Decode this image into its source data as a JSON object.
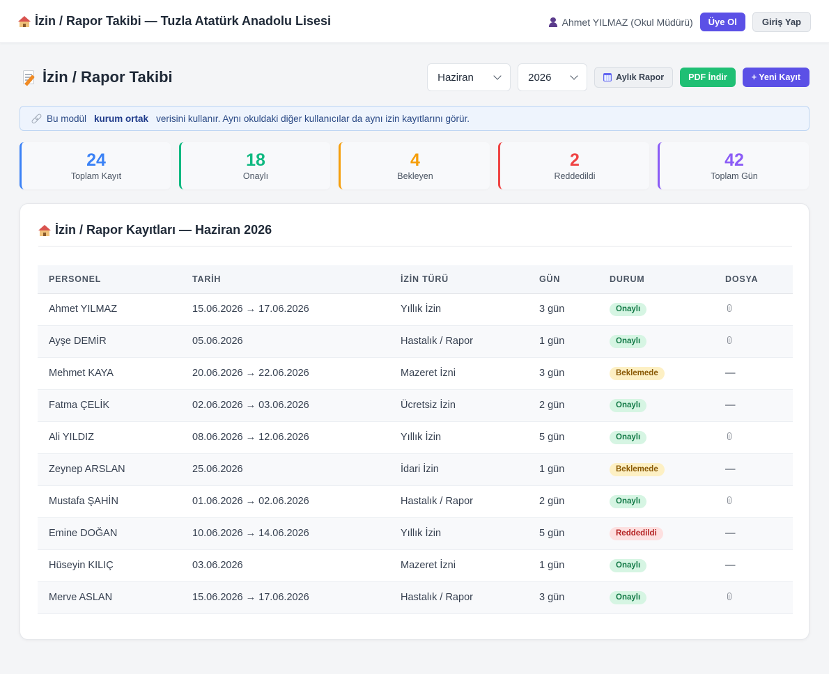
{
  "header": {
    "title": "İzin / Rapor Takibi — Tuzla Atatürk Anadolu Lisesi",
    "user": "Ahmet YILMAZ (Okul Müdürü)",
    "signup_label": "Üye Ol",
    "login_label": "Giriş Yap"
  },
  "page": {
    "title": "İzin / Rapor Takibi"
  },
  "controls": {
    "month": "Haziran",
    "year": "2026",
    "monthly_report_label": "Aylık Rapor",
    "pdf_label": "PDF İndir",
    "new_record_label": "+ Yeni Kayıt"
  },
  "notice": {
    "prefix": "Bu modül",
    "bold": "kurum ortak",
    "suffix": "verisini kullanır. Aynı okuldaki diğer kullanıcılar da aynı izin kayıtlarını görür."
  },
  "stats": [
    {
      "value": "24",
      "label": "Toplam Kayıt",
      "color": "#3b82f6"
    },
    {
      "value": "18",
      "label": "Onaylı",
      "color": "#10b981"
    },
    {
      "value": "4",
      "label": "Bekleyen",
      "color": "#f59e0b"
    },
    {
      "value": "2",
      "label": "Reddedildi",
      "color": "#ef4444"
    },
    {
      "value": "42",
      "label": "Toplam Gün",
      "color": "#8b5cf6"
    }
  ],
  "records": {
    "title": "İzin / Rapor Kayıtları — Haziran 2026",
    "columns": [
      "PERSONEL",
      "TARİH",
      "İZİN TÜRÜ",
      "GÜN",
      "DURUM",
      "DOSYA"
    ],
    "rows": [
      {
        "name": "Ahmet YILMAZ",
        "date": "15.06.2026 → 17.06.2026",
        "type": "Yıllık İzin",
        "days": "3 gün",
        "status": "Onaylı",
        "status_kind": "ok",
        "file": true
      },
      {
        "name": "Ayşe DEMİR",
        "date": "05.06.2026",
        "type": "Hastalık / Rapor",
        "days": "1 gün",
        "status": "Onaylı",
        "status_kind": "ok",
        "file": true
      },
      {
        "name": "Mehmet KAYA",
        "date": "20.06.2026 → 22.06.2026",
        "type": "Mazeret İzni",
        "days": "3 gün",
        "status": "Beklemede",
        "status_kind": "wait",
        "file": false
      },
      {
        "name": "Fatma ÇELİK",
        "date": "02.06.2026 → 03.06.2026",
        "type": "Ücretsiz İzin",
        "days": "2 gün",
        "status": "Onaylı",
        "status_kind": "ok",
        "file": false
      },
      {
        "name": "Ali YILDIZ",
        "date": "08.06.2026 → 12.06.2026",
        "type": "Yıllık İzin",
        "days": "5 gün",
        "status": "Onaylı",
        "status_kind": "ok",
        "file": true
      },
      {
        "name": "Zeynep ARSLAN",
        "date": "25.06.2026",
        "type": "İdari İzin",
        "days": "1 gün",
        "status": "Beklemede",
        "status_kind": "wait",
        "file": false
      },
      {
        "name": "Mustafa ŞAHİN",
        "date": "01.06.2026 → 02.06.2026",
        "type": "Hastalık / Rapor",
        "days": "2 gün",
        "status": "Onaylı",
        "status_kind": "ok",
        "file": true
      },
      {
        "name": "Emine DOĞAN",
        "date": "10.06.2026 → 14.06.2026",
        "type": "Yıllık İzin",
        "days": "5 gün",
        "status": "Reddedildi",
        "status_kind": "no",
        "file": false
      },
      {
        "name": "Hüseyin KILIÇ",
        "date": "03.06.2026",
        "type": "Mazeret İzni",
        "days": "1 gün",
        "status": "Onaylı",
        "status_kind": "ok",
        "file": false
      },
      {
        "name": "Merve ASLAN",
        "date": "15.06.2026 → 17.06.2026",
        "type": "Hastalık / Rapor",
        "days": "3 gün",
        "status": "Onaylı",
        "status_kind": "ok",
        "file": true
      }
    ],
    "no_file_symbol": "—"
  }
}
